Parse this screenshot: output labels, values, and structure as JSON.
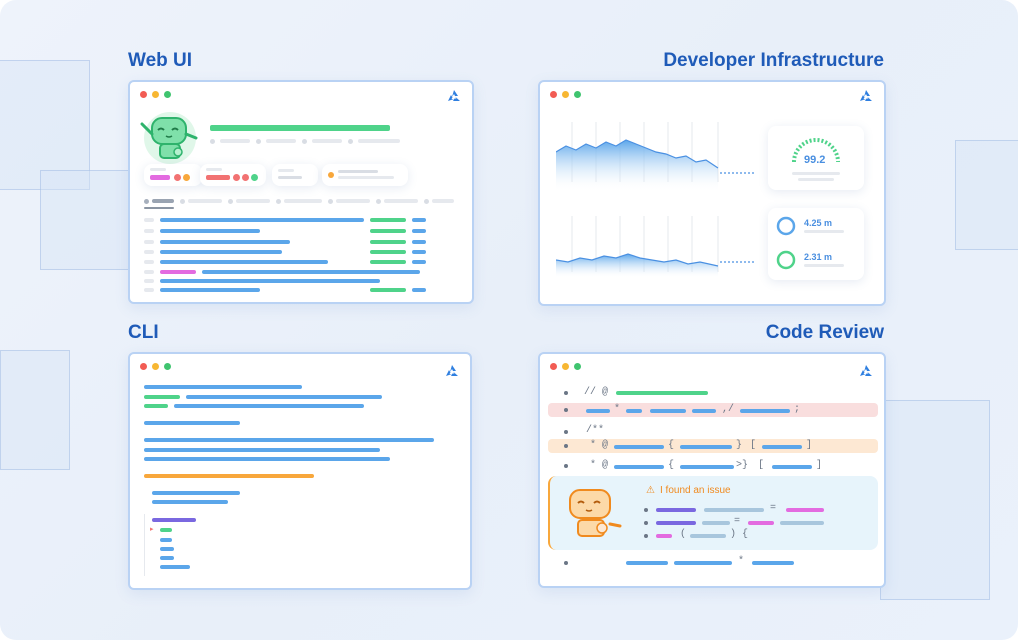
{
  "sections": {
    "web_ui": "Web UI",
    "dev_infra": "Developer Infrastructure",
    "cli": "CLI",
    "code_review": "Code Review"
  },
  "infra": {
    "gauge_value": "99.2",
    "metric_1": "4.25 m",
    "metric_2": "2.31 m"
  },
  "code_review": {
    "line1": "// @",
    "line2_star": "*",
    "line2_mid": ",/",
    "line2_end": ";",
    "line3": "/**",
    "line4_at": "* @",
    "line4_brace_open": "{",
    "line4_brace_close": "}",
    "line4_bracket_open": "[",
    "line4_bracket_close": "]",
    "line5_at": "* @",
    "line5_brace_open": "{",
    "line5_brace_close": ">}",
    "line5_bracket_open": "[",
    "line5_bracket_close": "]",
    "issue_title": "I found an issue",
    "eq1": "=",
    "eq2": "=",
    "paren_open": "(",
    "paren_close": ") {",
    "last_star": "*"
  },
  "colors": {
    "title": "#1f5bb8",
    "window_border": "#b9d2f4",
    "accent_blue": "#5ba6ea",
    "accent_green": "#4fd38a",
    "accent_pink": "#e36be0",
    "accent_orange": "#f8a73b"
  }
}
